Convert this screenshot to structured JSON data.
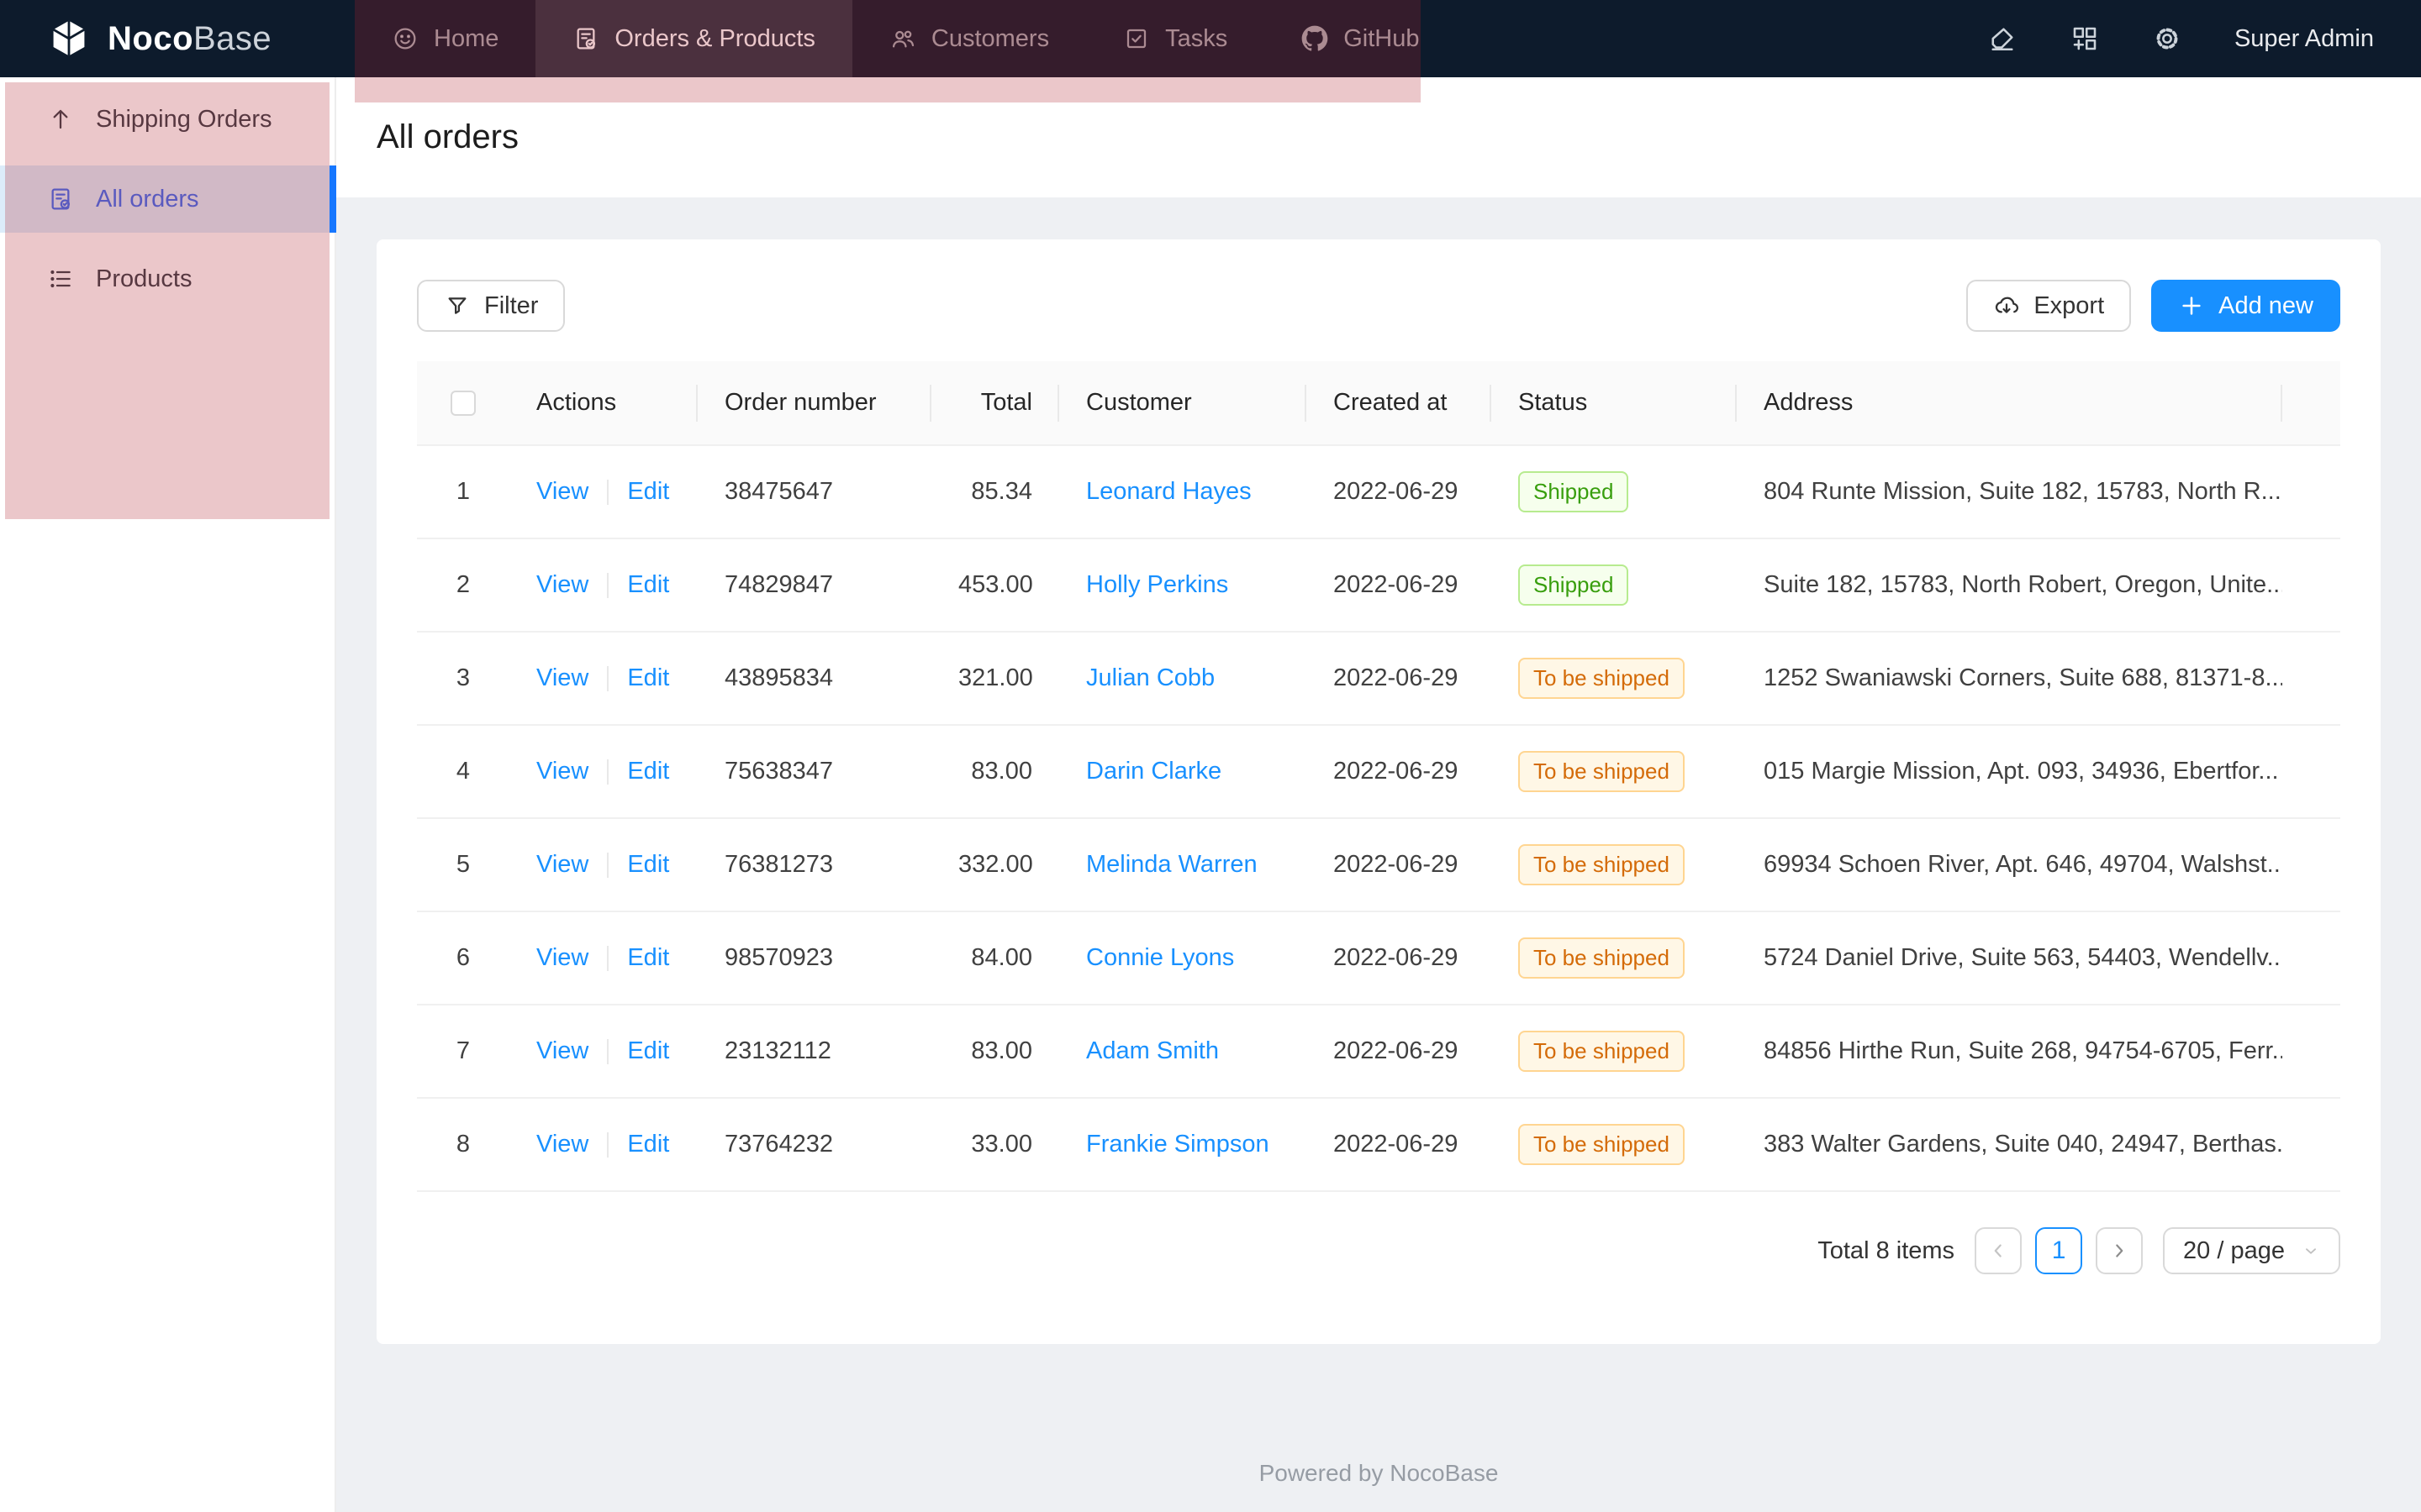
{
  "nav": {
    "brand": {
      "bold": "Noco",
      "light": "Base"
    },
    "items": [
      {
        "label": "Home",
        "icon": "smile",
        "selected": false
      },
      {
        "label": "Orders & Products",
        "icon": "file-check",
        "selected": true
      },
      {
        "label": "Customers",
        "icon": "team",
        "selected": false
      },
      {
        "label": "Tasks",
        "icon": "check-square",
        "selected": false
      },
      {
        "label": "GitHub",
        "icon": "github",
        "selected": false
      }
    ],
    "right_icons": [
      "highlighter",
      "blocks-add",
      "settings"
    ],
    "user": "Super Admin"
  },
  "sidebar": {
    "items": [
      {
        "label": "Shipping Orders",
        "icon": "arrow-up",
        "selected": false
      },
      {
        "label": "All orders",
        "icon": "file-check",
        "selected": true
      },
      {
        "label": "Products",
        "icon": "list",
        "selected": false
      }
    ]
  },
  "page": {
    "title": "All orders"
  },
  "toolbar": {
    "filter_label": "Filter",
    "export_label": "Export",
    "add_new_label": "Add new"
  },
  "table": {
    "headers": [
      "Actions",
      "Order number",
      "Total",
      "Customer",
      "Created at",
      "Status",
      "Address"
    ],
    "action_labels": [
      "View",
      "Edit"
    ],
    "rows": [
      {
        "index": "1",
        "order_number": "38475647",
        "total": "85.34",
        "customer": "Leonard Hayes",
        "created_at": "2022-06-29",
        "status": "Shipped",
        "status_type": "success",
        "address": "804 Runte Mission, Suite 182, 15783, North R..."
      },
      {
        "index": "2",
        "order_number": "74829847",
        "total": "453.00",
        "customer": "Holly Perkins",
        "created_at": "2022-06-29",
        "status": "Shipped",
        "status_type": "success",
        "address": "Suite 182, 15783, North Robert, Oregon, Unite..."
      },
      {
        "index": "3",
        "order_number": "43895834",
        "total": "321.00",
        "customer": "Julian Cobb",
        "created_at": "2022-06-29",
        "status": "To be shipped",
        "status_type": "warning",
        "address": "1252 Swaniawski Corners, Suite 688, 81371-8..."
      },
      {
        "index": "4",
        "order_number": "75638347",
        "total": "83.00",
        "customer": "Darin Clarke",
        "created_at": "2022-06-29",
        "status": "To be shipped",
        "status_type": "warning",
        "address": "015 Margie Mission, Apt. 093, 34936, Ebertfor..."
      },
      {
        "index": "5",
        "order_number": "76381273",
        "total": "332.00",
        "customer": "Melinda Warren",
        "created_at": "2022-06-29",
        "status": "To be shipped",
        "status_type": "warning",
        "address": "69934 Schoen River, Apt. 646, 49704, Walshst..."
      },
      {
        "index": "6",
        "order_number": "98570923",
        "total": "84.00",
        "customer": "Connie Lyons",
        "created_at": "2022-06-29",
        "status": "To be shipped",
        "status_type": "warning",
        "address": "5724 Daniel Drive, Suite 563, 54403, Wendellv..."
      },
      {
        "index": "7",
        "order_number": "23132112",
        "total": "83.00",
        "customer": "Adam Smith",
        "created_at": "2022-06-29",
        "status": "To be shipped",
        "status_type": "warning",
        "address": "84856 Hirthe Run, Suite 268, 94754-6705, Ferr..."
      },
      {
        "index": "8",
        "order_number": "73764232",
        "total": "33.00",
        "customer": "Frankie Simpson",
        "created_at": "2022-06-29",
        "status": "To be shipped",
        "status_type": "warning",
        "address": "383 Walter Gardens, Suite 040, 24947, Berthas..."
      }
    ]
  },
  "pagination": {
    "total_text": "Total 8 items",
    "current_page": "1",
    "page_size": "20 / page"
  },
  "footer": {
    "text": "Powered by NocoBase"
  },
  "colors": {
    "accent": "#1890ff",
    "nav_bg": "#0d1b2c",
    "annotation_red": "#b0202c",
    "tag_success_text": "#389e0d",
    "tag_success_bg": "#f6ffed",
    "tag_success_border": "#b7eb8f",
    "tag_warning_text": "#d46b08",
    "tag_warning_bg": "#fff7e6",
    "tag_warning_border": "#ffd591",
    "sidebar_selected_bg": "#dcecfa",
    "sidebar_selected_bar": "#1677ff"
  }
}
